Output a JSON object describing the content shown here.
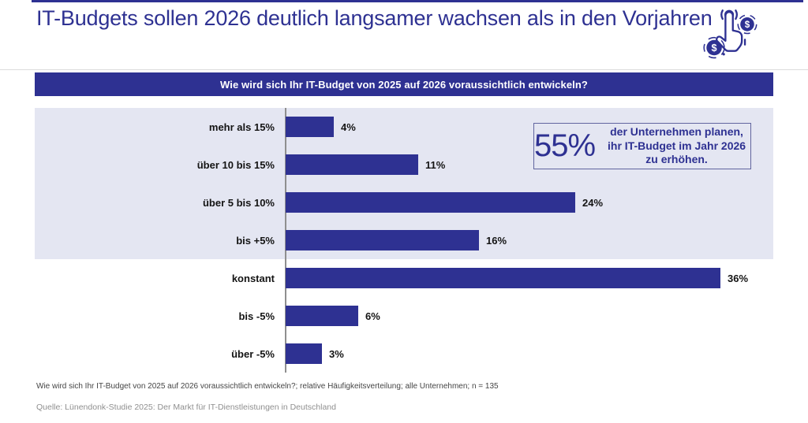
{
  "header": {
    "title": "IT-Budgets sollen 2026 deutlich langsamer wachsen als in den Vorjahren",
    "icon": "money-click-icon"
  },
  "banner": {
    "question": "Wie wird sich Ihr IT-Budget von 2025 auf 2026 voraussichtlich entwickeln?"
  },
  "callout": {
    "value": "55%",
    "text": "der Unternehmen planen, ihr IT-Budget im Jahr 2026 zu erhöhen."
  },
  "footnote": "Wie wird sich Ihr IT-Budget von 2025 auf 2026 voraussichtlich entwickeln?; relative Häufigkeitsverteilung; alle Unternehmen; n = 135",
  "source": "Quelle: Lünendonk-Studie 2025: Der Markt für IT-Dienstleistungen in Deutschland",
  "colors": {
    "primary": "#2e3192",
    "highlight_band": "#e4e6f2",
    "axis_line": "#8f8f8f",
    "divider": "#dcdcdc",
    "callout_border": "#61659f",
    "label_text": "#141414",
    "footnote_text": "#454545",
    "source_text": "#8f8f8f"
  },
  "chart_data": {
    "type": "bar",
    "orientation": "horizontal",
    "title": "Wie wird sich Ihr IT-Budget von 2025 auf 2026 voraussichtlich entwickeln?",
    "categories": [
      "mehr als 15%",
      "über 10 bis 15%",
      "über 5 bis 10%",
      "bis +5%",
      "konstant",
      "bis -5%",
      "über -5%"
    ],
    "values": [
      4,
      11,
      24,
      16,
      36,
      6,
      3
    ],
    "value_labels": [
      "4%",
      "11%",
      "24%",
      "16%",
      "36%",
      "6%",
      "3%"
    ],
    "unit": "%",
    "xlim": [
      0,
      40
    ],
    "grid": false,
    "legend": false,
    "highlighted_categories": [
      "mehr als 15%",
      "über 10 bis 15%",
      "über 5 bis 10%",
      "bis +5%"
    ],
    "highlight_meaning": "Kategorien mit geplanter Budget-Erhöhung (Summe 55%)",
    "n": 135
  }
}
